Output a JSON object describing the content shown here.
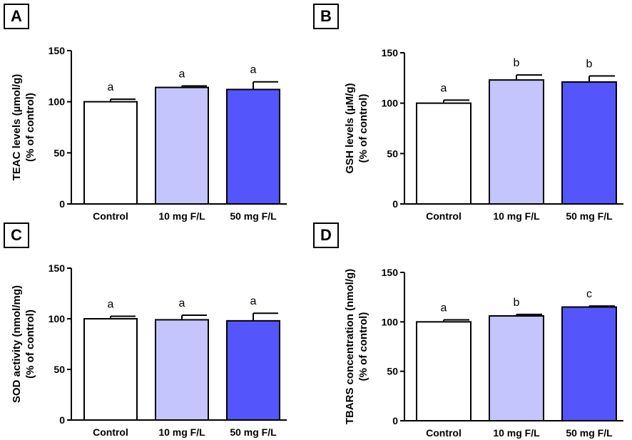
{
  "chart_data": [
    {
      "panel": "A",
      "type": "bar",
      "categories": [
        "Control",
        "10 mg F/L",
        "50 mg F/L"
      ],
      "values": [
        100,
        114,
        112
      ],
      "errors": [
        2.5,
        1.5,
        7.5
      ],
      "significance": [
        "a",
        "a",
        "a"
      ],
      "ylabel_line1": "TEAC levels (µmol/g)",
      "ylabel_line2": "(% of control)",
      "ylim": [
        0,
        150
      ],
      "yticks": [
        0,
        50,
        100,
        150
      ],
      "colors": [
        "#ffffff",
        "#c5c5fd",
        "#5555fc"
      ]
    },
    {
      "panel": "B",
      "type": "bar",
      "categories": [
        "Control",
        "10 mg F/L",
        "50 mg F/L"
      ],
      "values": [
        100,
        123,
        121
      ],
      "errors": [
        3,
        5,
        6
      ],
      "significance": [
        "a",
        "b",
        "b"
      ],
      "ylabel_line1": "GSH levels (µM/g)",
      "ylabel_line2": "(% of control)",
      "ylim": [
        0,
        150
      ],
      "yticks": [
        0,
        50,
        100,
        150
      ],
      "colors": [
        "#ffffff",
        "#c5c5fd",
        "#5555fc"
      ]
    },
    {
      "panel": "C",
      "type": "bar",
      "categories": [
        "Control",
        "10 mg F/L",
        "50 mg F/L"
      ],
      "values": [
        100,
        99,
        98
      ],
      "errors": [
        2.5,
        4.5,
        7.5
      ],
      "significance": [
        "a",
        "a",
        "a"
      ],
      "ylabel_line1": "SOD activity (nmol/mg)",
      "ylabel_line2": "(% of control)",
      "ylim": [
        0,
        150
      ],
      "yticks": [
        0,
        50,
        100,
        150
      ],
      "colors": [
        "#ffffff",
        "#c5c5fd",
        "#5555fc"
      ]
    },
    {
      "panel": "D",
      "type": "bar",
      "categories": [
        "Control",
        "10 mg F/L",
        "50 mg F/L"
      ],
      "values": [
        100,
        106,
        115
      ],
      "errors": [
        2,
        1.5,
        1
      ],
      "significance": [
        "a",
        "b",
        "c"
      ],
      "ylabel_line1": "TBARS concentration (nmol/g)",
      "ylabel_line2": "(% of control)",
      "ylim": [
        0,
        150
      ],
      "yticks": [
        0,
        50,
        100,
        150
      ],
      "colors": [
        "#ffffff",
        "#c5c5fd",
        "#5555fc"
      ]
    }
  ]
}
